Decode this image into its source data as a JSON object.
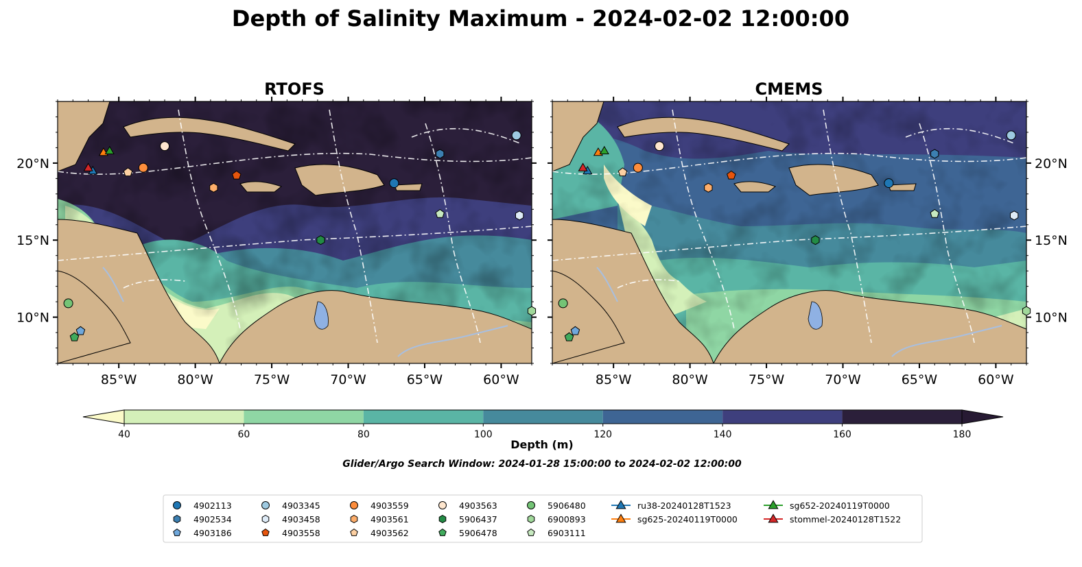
{
  "figure": {
    "title": "Depth of Salinity Maximum - 2024-02-02 12:00:00",
    "search_window_note": "Glider/Argo Search Window: 2024-01-28 15:00:00 to 2024-02-02 12:00:00"
  },
  "panels": [
    {
      "title": "RTOFS"
    },
    {
      "title": "CMEMS"
    }
  ],
  "map_extent": {
    "lon_min": -89,
    "lon_max": -58,
    "lat_min": 7,
    "lat_max": 24
  },
  "axes": {
    "lon_ticks": [
      {
        "value": -85,
        "label": "85°W"
      },
      {
        "value": -80,
        "label": "80°W"
      },
      {
        "value": -75,
        "label": "75°W"
      },
      {
        "value": -70,
        "label": "70°W"
      },
      {
        "value": -65,
        "label": "65°W"
      },
      {
        "value": -60,
        "label": "60°W"
      }
    ],
    "lat_ticks": [
      {
        "value": 10,
        "label": "10°N"
      },
      {
        "value": 15,
        "label": "15°N"
      },
      {
        "value": 20,
        "label": "20°N"
      }
    ]
  },
  "colorbar": {
    "label": "Depth (m)",
    "levels": [
      40,
      60,
      80,
      100,
      120,
      140,
      160,
      180
    ],
    "tick_labels": [
      "40",
      "60",
      "80",
      "100",
      "120",
      "140",
      "160",
      "180"
    ],
    "colors": [
      "#d4f0b9",
      "#8fd6a4",
      "#5ab5a5",
      "#468a9c",
      "#3e6594",
      "#3e3f7d",
      "#2b1f3a"
    ],
    "under_color": "#fbfac9",
    "over_color": "#271a33",
    "extend": "both"
  },
  "colors": {
    "land": "#d2b48c",
    "lake": "#8fb1e3",
    "river": "#a8bfe0",
    "eez_line": "#ffffff"
  },
  "legend": {
    "columns": [
      [
        {
          "label": "4902113",
          "marker": "circle",
          "color": "#1f77b4"
        },
        {
          "label": "4902534",
          "marker": "hexagon",
          "color": "#3c7fb1"
        },
        {
          "label": "4903186",
          "marker": "pentagon",
          "color": "#6fa8dc"
        }
      ],
      [
        {
          "label": "4903345",
          "marker": "circle",
          "color": "#9ecae1"
        },
        {
          "label": "4903458",
          "marker": "hexagon",
          "color": "#deebf7"
        },
        {
          "label": "4903558",
          "marker": "pentagon",
          "color": "#e6550d"
        }
      ],
      [
        {
          "label": "4903559",
          "marker": "circle",
          "color": "#fd8d3c"
        },
        {
          "label": "4903561",
          "marker": "hexagon",
          "color": "#fdae6b"
        },
        {
          "label": "4903562",
          "marker": "pentagon",
          "color": "#fdd0a2"
        }
      ],
      [
        {
          "label": "4903563",
          "marker": "circle",
          "color": "#fee6ce"
        },
        {
          "label": "5906437",
          "marker": "hexagon",
          "color": "#238b45"
        },
        {
          "label": "5906478",
          "marker": "pentagon",
          "color": "#41ab5d"
        }
      ],
      [
        {
          "label": "5906480",
          "marker": "circle",
          "color": "#74c476"
        },
        {
          "label": "6900893",
          "marker": "hexagon",
          "color": "#a1d99b"
        },
        {
          "label": "6903111",
          "marker": "pentagon",
          "color": "#c7e9c0"
        }
      ],
      [
        {
          "label": "ru38-20240128T1523",
          "marker": "triangle-line",
          "color": "#1f77b4"
        },
        {
          "label": "sg625-20240119T0000",
          "marker": "triangle-line",
          "color": "#ff7f0e"
        }
      ],
      [
        {
          "label": "sg652-20240119T0000",
          "marker": "triangle-line",
          "color": "#2ca02c"
        },
        {
          "label": "stommel-20240128T1522",
          "marker": "triangle-line",
          "color": "#d62728"
        }
      ]
    ]
  },
  "platforms": [
    {
      "id": "4902113",
      "lon": -67.0,
      "lat": 18.7,
      "marker": "circle",
      "color": "#1f77b4"
    },
    {
      "id": "4902534",
      "lon": -64.0,
      "lat": 20.6,
      "marker": "hexagon",
      "color": "#3c7fb1"
    },
    {
      "id": "4903186",
      "lon": -87.5,
      "lat": 9.1,
      "marker": "pentagon",
      "color": "#6fa8dc"
    },
    {
      "id": "4903345",
      "lon": -59.0,
      "lat": 21.8,
      "marker": "circle",
      "color": "#9ecae1"
    },
    {
      "id": "4903458",
      "lon": -58.8,
      "lat": 16.6,
      "marker": "hexagon",
      "color": "#deebf7"
    },
    {
      "id": "4903558",
      "lon": -77.3,
      "lat": 19.2,
      "marker": "pentagon",
      "color": "#e6550d"
    },
    {
      "id": "4903559",
      "lon": -83.4,
      "lat": 19.7,
      "marker": "circle",
      "color": "#fd8d3c"
    },
    {
      "id": "4903561",
      "lon": -78.8,
      "lat": 18.4,
      "marker": "hexagon",
      "color": "#fdae6b"
    },
    {
      "id": "4903562",
      "lon": -84.4,
      "lat": 19.4,
      "marker": "pentagon",
      "color": "#fdd0a2"
    },
    {
      "id": "4903563",
      "lon": -82.0,
      "lat": 21.1,
      "marker": "circle",
      "color": "#fee6ce"
    },
    {
      "id": "5906437",
      "lon": -71.8,
      "lat": 15.0,
      "marker": "hexagon",
      "color": "#238b45"
    },
    {
      "id": "5906478",
      "lon": -87.9,
      "lat": 8.7,
      "marker": "pentagon",
      "color": "#41ab5d"
    },
    {
      "id": "5906480",
      "lon": -88.3,
      "lat": 10.9,
      "marker": "circle",
      "color": "#74c476"
    },
    {
      "id": "6900893",
      "lon": -58.0,
      "lat": 10.4,
      "marker": "hexagon",
      "color": "#a1d99b"
    },
    {
      "id": "6903111",
      "lon": -64.0,
      "lat": 16.7,
      "marker": "pentagon",
      "color": "#c7e9c0"
    },
    {
      "id": "ru38-20240128T1523",
      "lon": -86.7,
      "lat": 19.5,
      "marker": "triangle",
      "color": "#1f77b4"
    },
    {
      "id": "sg625-20240119T0000",
      "lon": -86.0,
      "lat": 20.7,
      "marker": "triangle",
      "color": "#ff7f0e"
    },
    {
      "id": "sg652-20240119T0000",
      "lon": -85.6,
      "lat": 20.8,
      "marker": "triangle",
      "color": "#2ca02c"
    },
    {
      "id": "stommel-20240128T1522",
      "lon": -87.0,
      "lat": 19.7,
      "marker": "triangle",
      "color": "#d62728"
    }
  ]
}
